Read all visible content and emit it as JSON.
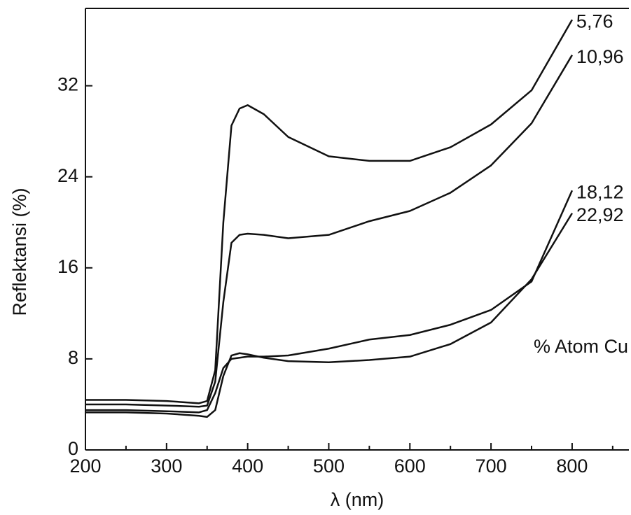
{
  "chart_data": {
    "type": "line",
    "x_label": "λ (nm)",
    "y_label": "Reflektansi (%)",
    "annotation": "% Atom Cu",
    "x": [
      200,
      250,
      300,
      340,
      350,
      360,
      370,
      380,
      390,
      400,
      420,
      450,
      500,
      550,
      600,
      650,
      700,
      750,
      800
    ],
    "series": [
      {
        "name": "5,76",
        "color": "#111111",
        "values": [
          4.4,
          4.4,
          4.3,
          4.1,
          4.3,
          7,
          20,
          28.5,
          30,
          30.3,
          29.5,
          27.5,
          25.8,
          25.4,
          25.4,
          26.6,
          28.6,
          31.6,
          37.8
        ]
      },
      {
        "name": "10,96",
        "color": "#111111",
        "values": [
          4.0,
          4.0,
          3.9,
          3.8,
          3.9,
          6,
          13,
          18.2,
          18.9,
          19,
          18.9,
          18.6,
          18.9,
          20.1,
          21,
          22.6,
          25,
          28.7,
          34.7
        ]
      },
      {
        "name": "18,12",
        "color": "#111111",
        "values": [
          3.5,
          3.5,
          3.4,
          3.3,
          3.5,
          5,
          7.2,
          8.0,
          8.1,
          8.2,
          8.2,
          8.3,
          8.9,
          9.7,
          10.1,
          11,
          12.3,
          14.8,
          22.8
        ]
      },
      {
        "name": "22,92",
        "color": "#111111",
        "values": [
          3.3,
          3.3,
          3.2,
          3.0,
          2.9,
          3.5,
          6.5,
          8.3,
          8.5,
          8.4,
          8.1,
          7.8,
          7.7,
          7.9,
          8.2,
          9.3,
          11.2,
          15,
          20.8
        ]
      }
    ],
    "xlim": [
      200,
      870
    ],
    "ylim": [
      0,
      38.8
    ],
    "xticks": [
      200,
      300,
      400,
      500,
      600,
      700,
      800
    ],
    "xminorticks": [
      250,
      350,
      450,
      550,
      650,
      750,
      850
    ],
    "yticks": [
      0,
      8,
      16,
      24,
      32
    ]
  }
}
